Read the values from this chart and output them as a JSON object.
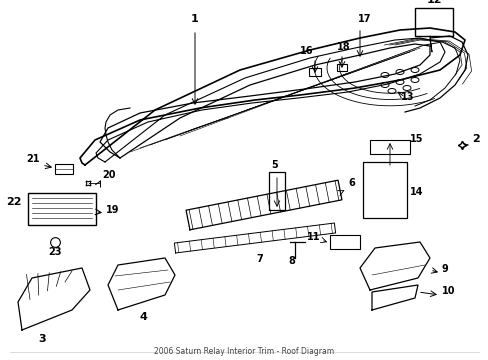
{
  "title": "2006 Saturn Relay Interior Trim - Roof Diagram",
  "background_color": "#ffffff",
  "line_color": "#000000",
  "text_color": "#000000",
  "figsize": [
    4.89,
    3.6
  ],
  "dpi": 100
}
